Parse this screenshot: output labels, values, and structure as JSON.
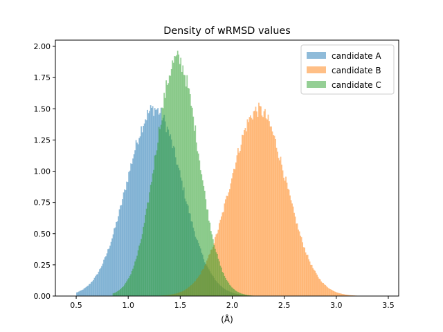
{
  "chart_data": {
    "type": "histogram",
    "title": "Density of wRMSD values",
    "xlabel": "(Å)",
    "ylabel": "",
    "xlim": [
      0.3,
      3.6
    ],
    "ylim": [
      0,
      2.05
    ],
    "xticks": [
      "0.5",
      "1.0",
      "1.5",
      "2.0",
      "2.5",
      "3.0",
      "3.5"
    ],
    "yticks": [
      "0.00",
      "0.25",
      "0.50",
      "0.75",
      "1.00",
      "1.25",
      "1.50",
      "1.75",
      "2.00"
    ],
    "grid": false,
    "legend_position": "top-right",
    "bin_width": 0.01,
    "alpha": 0.5,
    "series": [
      {
        "name": "candidate A",
        "color": "#1f77b4",
        "dist": "gaussian",
        "mean": 1.25,
        "sd": 0.265,
        "min": 0.5,
        "max": 2.45,
        "peak": 1.5
      },
      {
        "name": "candidate B",
        "color": "#ff7f0e",
        "dist": "gaussian",
        "mean": 2.25,
        "sd": 0.27,
        "min": 1.3,
        "max": 3.4,
        "peak": 1.49
      },
      {
        "name": "candidate C",
        "color": "#2ca02c",
        "dist": "gaussian",
        "mean": 1.47,
        "sd": 0.205,
        "min": 0.85,
        "max": 2.4,
        "peak": 1.9
      }
    ]
  }
}
